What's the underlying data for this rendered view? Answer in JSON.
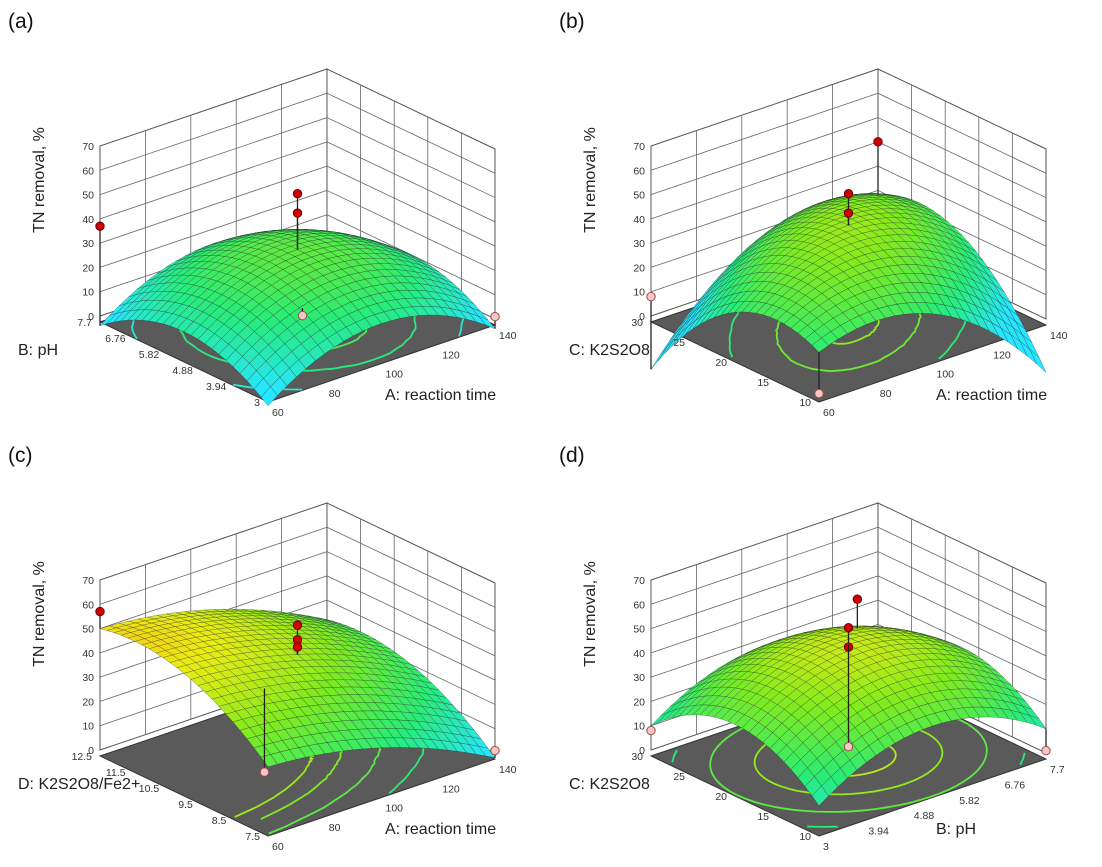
{
  "chart_data": [
    {
      "type": "surface3d",
      "panel_label": "(a)",
      "zlabel": "TN removal, %",
      "xlabel": "A: reaction time",
      "ylabel": "B: pH",
      "zticks": [
        "0",
        "10",
        "20",
        "30",
        "40",
        "50",
        "60",
        "70"
      ],
      "zlim": [
        0,
        70
      ],
      "xticks": [
        "60",
        "80",
        "100",
        "120",
        "140"
      ],
      "yticks": [
        "3",
        "3.94",
        "4.88",
        "5.82",
        "6.76",
        "7.7"
      ],
      "surface": {
        "z0": 28,
        "cA": 38,
        "cB": 38,
        "aX": 0.0,
        "aY": 0.0,
        "qX": -18,
        "qY": -14,
        "xy": 0
      },
      "design_points": [
        {
          "x": 0.0,
          "y": 0.0,
          "z": 51,
          "kind": "above"
        },
        {
          "x": 0.0,
          "y": 0.0,
          "z": 43,
          "kind": "above"
        },
        {
          "x": -1.0,
          "y": 1.0,
          "z": 37,
          "kind": "above"
        },
        {
          "x": 1.0,
          "y": -1.0,
          "z": 1,
          "kind": "below"
        },
        {
          "x": -0.4,
          "y": -0.6,
          "z": 17,
          "kind": "below"
        }
      ],
      "contour_levels": [
        0.18,
        0.45,
        0.75,
        1.05
      ]
    },
    {
      "type": "surface3d",
      "panel_label": "(b)",
      "zlabel": "TN removal, %",
      "xlabel": "A: reaction time",
      "ylabel": "C: K2S2O8",
      "zticks": [
        "0",
        "10",
        "20",
        "30",
        "40",
        "50",
        "60",
        "70"
      ],
      "zlim": [
        0,
        70
      ],
      "xticks": [
        "60",
        "80",
        "100",
        "120",
        "140"
      ],
      "yticks": [
        "10",
        "15",
        "20",
        "25",
        "30"
      ],
      "surface": {
        "z0": 38,
        "cA": 38,
        "cB": 38,
        "aX": 0.0,
        "aY": 0.0,
        "qX": -20,
        "qY": -20,
        "xy": 20
      },
      "design_points": [
        {
          "x": 0.0,
          "y": 0.0,
          "z": 51,
          "kind": "above"
        },
        {
          "x": 0.0,
          "y": 0.0,
          "z": 43,
          "kind": "above"
        },
        {
          "x": 1.0,
          "y": 1.0,
          "z": 40,
          "kind": "above"
        },
        {
          "x": -1.0,
          "y": 1.0,
          "z": 8,
          "kind": "below"
        },
        {
          "x": -1.0,
          "y": -1.0,
          "z": 1,
          "kind": "below"
        }
      ],
      "contour_levels": [
        0.25,
        0.6,
        1.0
      ]
    },
    {
      "type": "surface3d",
      "panel_label": "(c)",
      "zlabel": "TN removal, %",
      "xlabel": "A: reaction time",
      "ylabel": "D: K2S2O8/Fe2+",
      "zticks": [
        "0",
        "10",
        "20",
        "30",
        "40",
        "50",
        "60",
        "70"
      ],
      "zlim": [
        0,
        70
      ],
      "xticks": [
        "60",
        "80",
        "100",
        "120",
        "140"
      ],
      "yticks": [
        "7.5",
        "8.5",
        "9.5",
        "10.5",
        "11.5",
        "12.5"
      ],
      "surface": {
        "z0": 40,
        "cA": 38,
        "cB": 38,
        "aX": -14,
        "aY": 12,
        "qX": -6,
        "qY": -10,
        "xy": 0
      },
      "design_points": [
        {
          "x": -1.0,
          "y": 1.0,
          "z": 57,
          "kind": "above"
        },
        {
          "x": 0.0,
          "y": 0.0,
          "z": 52,
          "kind": "above"
        },
        {
          "x": 0.0,
          "y": 0.0,
          "z": 46,
          "kind": "above"
        },
        {
          "x": 0.0,
          "y": 0.0,
          "z": 43,
          "kind": "above"
        },
        {
          "x": 1.0,
          "y": -1.0,
          "z": 1,
          "kind": "below"
        },
        {
          "x": -0.55,
          "y": -0.35,
          "z": 6,
          "kind": "below"
        }
      ],
      "contour_levels": [
        0.3,
        0.55,
        0.8,
        1.05
      ]
    },
    {
      "type": "surface3d",
      "panel_label": "(d)",
      "zlabel": "TN removal, %",
      "xlabel": "B: pH",
      "ylabel": "C: K2S2O8",
      "zticks": [
        "0",
        "10",
        "20",
        "30",
        "40",
        "50",
        "60",
        "70"
      ],
      "zlim": [
        0,
        70
      ],
      "xticks": [
        "3",
        "3.94",
        "4.88",
        "5.82",
        "6.76",
        "7.7"
      ],
      "yticks": [
        "10",
        "15",
        "20",
        "25",
        "30"
      ],
      "surface": {
        "z0": 44,
        "cA": 38,
        "cB": 38,
        "aX": 0.0,
        "aY": 0.0,
        "qX": -17,
        "qY": -17,
        "xy": 0
      },
      "design_points": [
        {
          "x": 0.0,
          "y": 0.0,
          "z": 51,
          "kind": "above"
        },
        {
          "x": 0.0,
          "y": 0.0,
          "z": 43,
          "kind": "above"
        },
        {
          "x": 0.3,
          "y": 0.3,
          "z": 53,
          "kind": "above"
        },
        {
          "x": -1.0,
          "y": 1.0,
          "z": 8,
          "kind": "below"
        },
        {
          "x": 1.0,
          "y": -1.0,
          "z": 1,
          "kind": "below"
        },
        {
          "x": 0.0,
          "y": 0.0,
          "z": 2,
          "kind": "below"
        }
      ],
      "contour_levels": [
        0.3,
        0.6,
        0.9,
        1.15
      ]
    }
  ]
}
